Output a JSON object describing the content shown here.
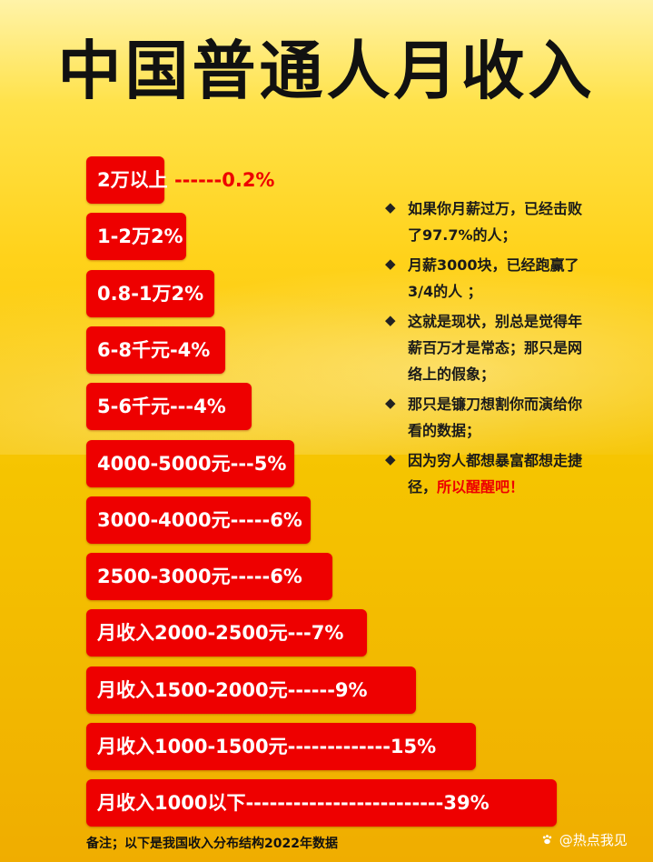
{
  "title": "中国普通人月收入",
  "chart_data": {
    "type": "bar",
    "orientation": "horizontal",
    "unit": "%",
    "categories": [
      "2万以上",
      "1-2万",
      "0.8-1万",
      "6-8千元",
      "5-6千元",
      "4000-5000元",
      "3000-4000元",
      "2500-3000元",
      "月收入2000-2500元",
      "月收入1500-2000元",
      "月收入1000-1500元",
      "月收入1000以下"
    ],
    "values": [
      0.2,
      2,
      2,
      4,
      4,
      5,
      6,
      6,
      7,
      9,
      15,
      39
    ],
    "bar_texts": [
      {
        "inside": "2万以上 ",
        "outside": "------0.2%"
      },
      {
        "inside": "1-2万2%",
        "outside": ""
      },
      {
        "inside": "0.8-1万2%",
        "outside": ""
      },
      {
        "inside": "6-8千元-4%",
        "outside": ""
      },
      {
        "inside": "5-6千元---4%",
        "outside": ""
      },
      {
        "inside": "4000-5000元---5%",
        "outside": ""
      },
      {
        "inside": "3000-4000元-----6%",
        "outside": ""
      },
      {
        "inside": "2500-3000元-----6%",
        "outside": ""
      },
      {
        "inside": "月收入2000-2500元---7%",
        "outside": ""
      },
      {
        "inside": "月收入1500-2000元------9%",
        "outside": ""
      },
      {
        "inside": "月收入1000-1500元-------------15%",
        "outside": ""
      },
      {
        "inside": "月收入1000以下-------------------------39%",
        "outside": ""
      }
    ]
  },
  "notes": [
    {
      "text": "如果你月薪过万，已经击败了97.7%的人；",
      "highlight": ""
    },
    {
      "text": "月薪3000块，已经跑赢了3/4的人 ；",
      "highlight": ""
    },
    {
      "text": "这就是现状，别总是觉得年薪百万才是常态；那只是网络上的假象；",
      "highlight": ""
    },
    {
      "text": "那只是镰刀想割你而演给你看的数据；",
      "highlight": ""
    },
    {
      "text": "因为穷人都想暴富都想走捷径，",
      "highlight": "所以醒醒吧！"
    }
  ],
  "bullet_glyph": "◆",
  "footnote": "备注；以下是我国收入分布结构2022年数据",
  "watermark": {
    "icon": "paw-icon",
    "text": "@热点我见"
  },
  "colors": {
    "bar": "#ee0000",
    "highlight": "#ee0000",
    "title": "#111111"
  }
}
